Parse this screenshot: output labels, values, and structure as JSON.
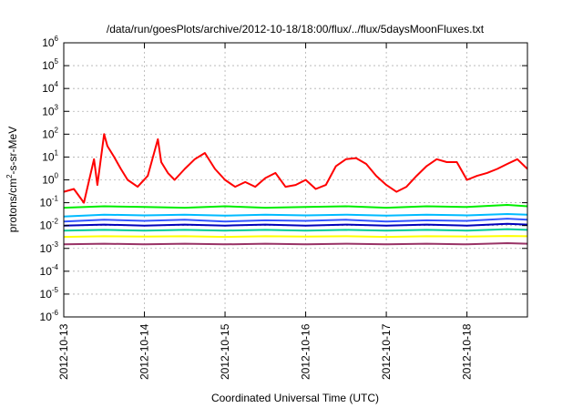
{
  "chart_data": {
    "type": "line",
    "title": "/data/run/goesPlots/archive/2012-10-18/18:00/flux/../flux/5daysMoonFluxes.txt",
    "xlabel": "Coordinated Universal Time (UTC)",
    "ylabel_parts": {
      "base": "protons/cm",
      "sup": "2",
      "rest": "-s-sr-MeV"
    },
    "x_range": [
      "2012-10-13T00:00",
      "2012-10-18T18:00"
    ],
    "x_ticks": [
      "2012-10-13",
      "2012-10-14",
      "2012-10-15",
      "2012-10-16",
      "2012-10-17",
      "2012-10-18"
    ],
    "y_scale": "log",
    "y_range": [
      1e-06,
      1000000.0
    ],
    "y_ticks": [
      {
        "base": "10",
        "exp": "-6",
        "value": 1e-06
      },
      {
        "base": "10",
        "exp": "-5",
        "value": 1e-05
      },
      {
        "base": "10",
        "exp": "-4",
        "value": 0.0001
      },
      {
        "base": "10",
        "exp": "-3",
        "value": 0.001
      },
      {
        "base": "10",
        "exp": "-2",
        "value": 0.01
      },
      {
        "base": "10",
        "exp": "-1",
        "value": 0.1
      },
      {
        "base": "10",
        "exp": "0",
        "value": 1
      },
      {
        "base": "10",
        "exp": "1",
        "value": 10
      },
      {
        "base": "10",
        "exp": "2",
        "value": 100
      },
      {
        "base": "10",
        "exp": "3",
        "value": 1000
      },
      {
        "base": "10",
        "exp": "4",
        "value": 10000
      },
      {
        "base": "10",
        "exp": "5",
        "value": 100000
      },
      {
        "base": "10",
        "exp": "6",
        "value": 1000000
      }
    ],
    "grid": true,
    "legend": "none",
    "series": [
      {
        "color": "#ff0000",
        "x": [
          "2012-10-13T00:00",
          "2012-10-13T03:00",
          "2012-10-13T06:00",
          "2012-10-13T09:00",
          "2012-10-13T10:00",
          "2012-10-13T12:00",
          "2012-10-13T13:00",
          "2012-10-13T15:00",
          "2012-10-13T17:00",
          "2012-10-13T19:00",
          "2012-10-13T22:00",
          "2012-10-14T01:00",
          "2012-10-14T04:00",
          "2012-10-14T05:00",
          "2012-10-14T07:00",
          "2012-10-14T09:00",
          "2012-10-14T12:00",
          "2012-10-14T15:00",
          "2012-10-14T18:00",
          "2012-10-14T21:00",
          "2012-10-15T00:00",
          "2012-10-15T03:00",
          "2012-10-15T06:00",
          "2012-10-15T09:00",
          "2012-10-15T12:00",
          "2012-10-15T15:00",
          "2012-10-15T18:00",
          "2012-10-15T21:00",
          "2012-10-16T00:00",
          "2012-10-16T03:00",
          "2012-10-16T06:00",
          "2012-10-16T09:00",
          "2012-10-16T12:00",
          "2012-10-16T15:00",
          "2012-10-16T18:00",
          "2012-10-16T21:00",
          "2012-10-17T00:00",
          "2012-10-17T03:00",
          "2012-10-17T06:00",
          "2012-10-17T09:00",
          "2012-10-17T12:00",
          "2012-10-17T15:00",
          "2012-10-17T18:00",
          "2012-10-17T21:00",
          "2012-10-18T00:00",
          "2012-10-18T03:00",
          "2012-10-18T06:00",
          "2012-10-18T09:00",
          "2012-10-18T12:00",
          "2012-10-18T15:00",
          "2012-10-18T18:00"
        ],
        "y": [
          0.3,
          0.4,
          0.1,
          8,
          0.6,
          100,
          30,
          10,
          3,
          1,
          0.5,
          1.5,
          60,
          6,
          2,
          1,
          3,
          8,
          15,
          3,
          1,
          0.5,
          0.8,
          0.5,
          1.2,
          2,
          0.5,
          0.6,
          1,
          0.4,
          0.6,
          4,
          8,
          9,
          5,
          1.5,
          0.6,
          0.3,
          0.5,
          1.5,
          4,
          8,
          6,
          6,
          1,
          1.5,
          2,
          3,
          5,
          8,
          3
        ]
      },
      {
        "color": "#00ee00",
        "x": [
          "2012-10-13T00:00",
          "2012-10-13T12:00",
          "2012-10-14T00:00",
          "2012-10-14T12:00",
          "2012-10-15T00:00",
          "2012-10-15T12:00",
          "2012-10-16T00:00",
          "2012-10-16T12:00",
          "2012-10-17T00:00",
          "2012-10-17T12:00",
          "2012-10-18T00:00",
          "2012-10-18T12:00",
          "2012-10-18T18:00"
        ],
        "y": [
          0.06,
          0.07,
          0.065,
          0.06,
          0.07,
          0.06,
          0.065,
          0.07,
          0.06,
          0.07,
          0.065,
          0.08,
          0.07
        ]
      },
      {
        "color": "#00bbff",
        "x": [
          "2012-10-13T00:00",
          "2012-10-13T12:00",
          "2012-10-14T00:00",
          "2012-10-14T12:00",
          "2012-10-15T00:00",
          "2012-10-15T12:00",
          "2012-10-16T00:00",
          "2012-10-16T12:00",
          "2012-10-17T00:00",
          "2012-10-17T12:00",
          "2012-10-18T00:00",
          "2012-10-18T12:00",
          "2012-10-18T18:00"
        ],
        "y": [
          0.025,
          0.03,
          0.028,
          0.03,
          0.027,
          0.03,
          0.028,
          0.03,
          0.027,
          0.03,
          0.028,
          0.032,
          0.03
        ]
      },
      {
        "color": "#3355ff",
        "x": [
          "2012-10-13T00:00",
          "2012-10-13T12:00",
          "2012-10-14T00:00",
          "2012-10-14T12:00",
          "2012-10-15T00:00",
          "2012-10-15T12:00",
          "2012-10-16T00:00",
          "2012-10-16T12:00",
          "2012-10-17T00:00",
          "2012-10-17T12:00",
          "2012-10-18T00:00",
          "2012-10-18T12:00",
          "2012-10-18T18:00"
        ],
        "y": [
          0.015,
          0.018,
          0.016,
          0.018,
          0.015,
          0.017,
          0.016,
          0.018,
          0.015,
          0.017,
          0.016,
          0.02,
          0.018
        ]
      },
      {
        "color": "#0000bb",
        "x": [
          "2012-10-13T00:00",
          "2012-10-13T12:00",
          "2012-10-14T00:00",
          "2012-10-14T12:00",
          "2012-10-15T00:00",
          "2012-10-15T12:00",
          "2012-10-16T00:00",
          "2012-10-16T12:00",
          "2012-10-17T00:00",
          "2012-10-17T12:00",
          "2012-10-18T00:00",
          "2012-10-18T12:00",
          "2012-10-18T18:00"
        ],
        "y": [
          0.01,
          0.011,
          0.01,
          0.011,
          0.01,
          0.011,
          0.01,
          0.011,
          0.01,
          0.011,
          0.01,
          0.012,
          0.011
        ]
      },
      {
        "color": "#00cc99",
        "x": [
          "2012-10-13T00:00",
          "2012-10-13T12:00",
          "2012-10-14T00:00",
          "2012-10-14T12:00",
          "2012-10-15T00:00",
          "2012-10-15T12:00",
          "2012-10-16T00:00",
          "2012-10-16T12:00",
          "2012-10-17T00:00",
          "2012-10-17T12:00",
          "2012-10-18T00:00",
          "2012-10-18T12:00",
          "2012-10-18T18:00"
        ],
        "y": [
          0.006,
          0.0065,
          0.006,
          0.0065,
          0.006,
          0.0065,
          0.006,
          0.0065,
          0.006,
          0.0065,
          0.006,
          0.007,
          0.0065
        ]
      },
      {
        "color": "#ffff00",
        "x": [
          "2012-10-13T00:00",
          "2012-10-13T12:00",
          "2012-10-14T00:00",
          "2012-10-14T12:00",
          "2012-10-15T00:00",
          "2012-10-15T12:00",
          "2012-10-16T00:00",
          "2012-10-16T12:00",
          "2012-10-17T00:00",
          "2012-10-17T12:00",
          "2012-10-18T00:00",
          "2012-10-18T12:00",
          "2012-10-18T18:00"
        ],
        "y": [
          0.0032,
          0.0034,
          0.0033,
          0.0034,
          0.0032,
          0.0034,
          0.0033,
          0.0034,
          0.0032,
          0.0034,
          0.0033,
          0.0035,
          0.0034
        ]
      },
      {
        "color": "#993366",
        "x": [
          "2012-10-13T00:00",
          "2012-10-13T12:00",
          "2012-10-14T00:00",
          "2012-10-14T12:00",
          "2012-10-15T00:00",
          "2012-10-15T12:00",
          "2012-10-16T00:00",
          "2012-10-16T12:00",
          "2012-10-17T00:00",
          "2012-10-17T12:00",
          "2012-10-18T00:00",
          "2012-10-18T12:00",
          "2012-10-18T18:00"
        ],
        "y": [
          0.0015,
          0.0016,
          0.0015,
          0.0016,
          0.0015,
          0.0016,
          0.0015,
          0.0016,
          0.0015,
          0.0016,
          0.0015,
          0.0017,
          0.0016
        ]
      }
    ]
  }
}
